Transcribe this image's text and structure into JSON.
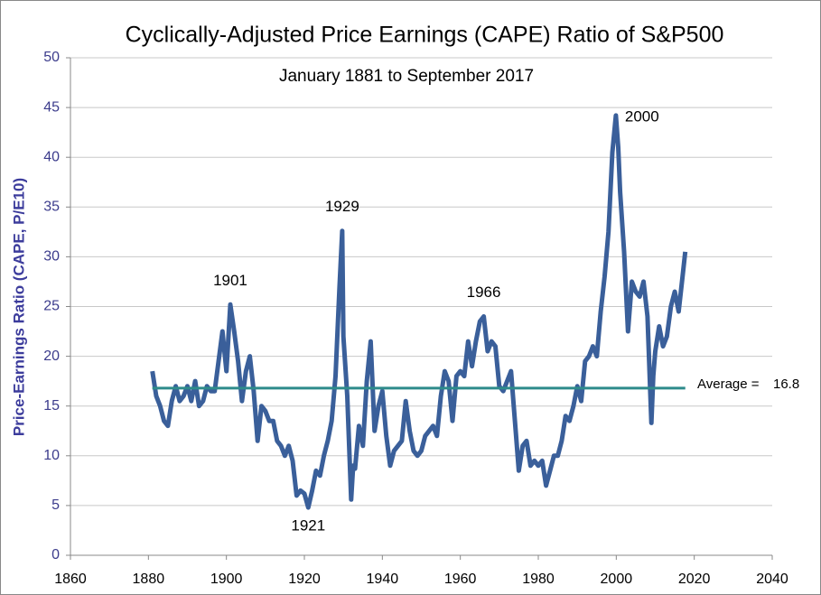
{
  "chart_data": {
    "type": "line",
    "title": "Cyclically-Adjusted Price Earnings (CAPE) Ratio of S&P500",
    "subtitle": "January 1881 to September 2017",
    "y_label": "Price-Earnings  Ratio (CAPE, P/E10)",
    "xlim": [
      1860,
      2040
    ],
    "xticks": [
      1860,
      1880,
      1900,
      1920,
      1940,
      1960,
      1980,
      2000,
      2020,
      2040
    ],
    "ylim": [
      0,
      50
    ],
    "yticks": [
      0,
      5,
      10,
      15,
      20,
      25,
      30,
      35,
      40,
      45,
      50
    ],
    "grid": true,
    "series": [
      {
        "color": "#3a5f9a",
        "x": [
          1881,
          1882,
          1883,
          1884,
          1885,
          1886,
          1887,
          1888,
          1889,
          1890,
          1891,
          1892,
          1893,
          1894,
          1895,
          1896,
          1897,
          1898,
          1899,
          1900,
          1901,
          1902,
          1903,
          1904,
          1905,
          1906,
          1907,
          1908,
          1909,
          1910,
          1911,
          1912,
          1913,
          1914,
          1915,
          1916,
          1917,
          1918,
          1919,
          1920,
          1921,
          1922,
          1923,
          1924,
          1925,
          1926,
          1927,
          1928,
          1929,
          1929.7,
          1930,
          1931,
          1932,
          1932.5,
          1933,
          1934,
          1935,
          1936,
          1937,
          1938,
          1939,
          1940,
          1941,
          1942,
          1943,
          1944,
          1945,
          1946,
          1947,
          1948,
          1949,
          1950,
          1951,
          1952,
          1953,
          1954,
          1955,
          1956,
          1957,
          1958,
          1959,
          1960,
          1961,
          1962,
          1963,
          1964,
          1965,
          1966,
          1967,
          1968,
          1969,
          1970,
          1971,
          1972,
          1973,
          1974,
          1975,
          1976,
          1977,
          1978,
          1979,
          1980,
          1981,
          1982,
          1983,
          1984,
          1985,
          1986,
          1987,
          1988,
          1989,
          1990,
          1991,
          1992,
          1993,
          1994,
          1995,
          1996,
          1997,
          1998,
          1999,
          1999.9,
          2000.5,
          2001,
          2002,
          2003,
          2004,
          2005,
          2006,
          2007,
          2008,
          2009,
          2009.5,
          2010,
          2011,
          2012,
          2013,
          2014,
          2015,
          2016,
          2017,
          2017.7
        ],
        "values": [
          18.5,
          16,
          15,
          13.5,
          13,
          15.5,
          17,
          15.5,
          16,
          17,
          15.5,
          17.5,
          15,
          15.5,
          17,
          16.5,
          16.5,
          19.5,
          22.5,
          18.5,
          25.2,
          22.5,
          19.5,
          15.5,
          18.5,
          20,
          16.5,
          11.5,
          15,
          14.5,
          13.5,
          13.5,
          11.5,
          11,
          10,
          11,
          9.5,
          6,
          6.5,
          6.2,
          4.8,
          6.5,
          8.5,
          8,
          10,
          11.5,
          13.5,
          18,
          27,
          32.6,
          22,
          16,
          5.6,
          9,
          8.7,
          13,
          11,
          17.5,
          21.5,
          12.5,
          15,
          16.5,
          12,
          9,
          10.5,
          11,
          11.5,
          15.5,
          12.5,
          10.5,
          10,
          10.5,
          12,
          12.5,
          13,
          12,
          16,
          18.5,
          17.5,
          13.5,
          18,
          18.5,
          18,
          21.5,
          19,
          21.5,
          23.5,
          24,
          20.5,
          21.5,
          21,
          17,
          16.5,
          17.5,
          18.5,
          13.5,
          8.5,
          11,
          11.5,
          9,
          9.5,
          9,
          9.5,
          7,
          8.5,
          10,
          10,
          11.5,
          14,
          13.5,
          15,
          17,
          15.5,
          19.5,
          20,
          21,
          20,
          24.5,
          28,
          32.5,
          40.5,
          44.2,
          41,
          36.5,
          30.5,
          22.5,
          27.5,
          26.5,
          26,
          27.5,
          24,
          13.3,
          18,
          20.5,
          23,
          21,
          22,
          25,
          26.5,
          24.5,
          28,
          30.5
        ]
      }
    ],
    "average": {
      "label": "Average =",
      "value": 16.8,
      "color": "#2e8b8b"
    },
    "annotations": [
      {
        "text": "1901",
        "x": 1901,
        "y": 25.2
      },
      {
        "text": "1929",
        "x": 1929.7,
        "y": 32.6
      },
      {
        "text": "1921",
        "x": 1921,
        "y": 4.8
      },
      {
        "text": "1966",
        "x": 1966,
        "y": 24
      },
      {
        "text": "2000",
        "x": 1999.9,
        "y": 44.2
      }
    ]
  }
}
